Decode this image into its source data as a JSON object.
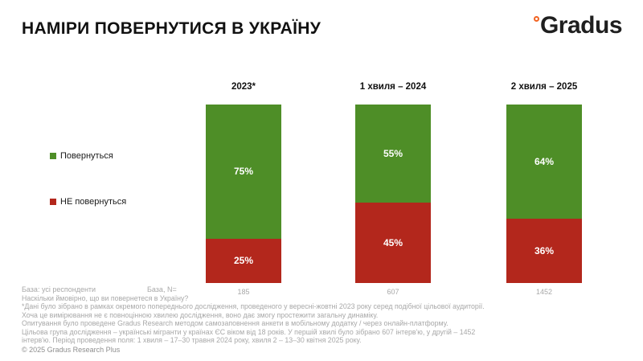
{
  "header": {
    "title": "НАМІРИ ПОВЕРНУТИСЯ В УКРАЇНУ",
    "logo_text": "Gradus",
    "logo_accent_color": "#f26322"
  },
  "chart_data": {
    "type": "bar",
    "subtype": "stacked-vertical",
    "title": "НАМІРИ ПОВЕРНУТИСЯ В УКРАЇНУ",
    "categories": [
      "2023*",
      "1 хвиля – 2024",
      "2 хвиля – 2025"
    ],
    "series": [
      {
        "name": "Повернуться",
        "color": "#4e8e27",
        "values": [
          75,
          55,
          64
        ]
      },
      {
        "name": "НЕ повернуться",
        "color": "#b3271c",
        "values": [
          25,
          45,
          36
        ]
      }
    ],
    "value_suffix": "%",
    "base_n": [
      "185",
      "607",
      "1452"
    ],
    "ylim": [
      0,
      100
    ],
    "grid": false,
    "legend_position": "left"
  },
  "footer": {
    "base_label": "База: усі респонденти",
    "base_n_label": "База, N=",
    "notes": [
      "Наскільки ймовірно, що ви повернетеся в Україну?",
      "*Дані було зібрано в рамках окремого попереднього дослідження, проведеного у вересні-жовтні 2023 року серед подібної цільової аудиторії.",
      "Хоча це вимірювання не є повноцінною хвилею дослідження, воно дає змогу простежити загальну динаміку.",
      "Опитування було проведене Gradus Research методом самозаповнення анкети в мобільному додатку / через онлайн-платформу.",
      "Цільова група дослідження – українські мігранти у країнах ЄС віком від 18 років. У першій хвилі було зібрано 607 інтерв'ю, у другій – 1452",
      "інтерв'ю. Період проведення поля: 1 хвиля – 17–30 травня 2024 року, хвиля 2 – 13–30 квітня 2025 року."
    ],
    "copyright": "© 2025 Gradus Research Plus"
  }
}
